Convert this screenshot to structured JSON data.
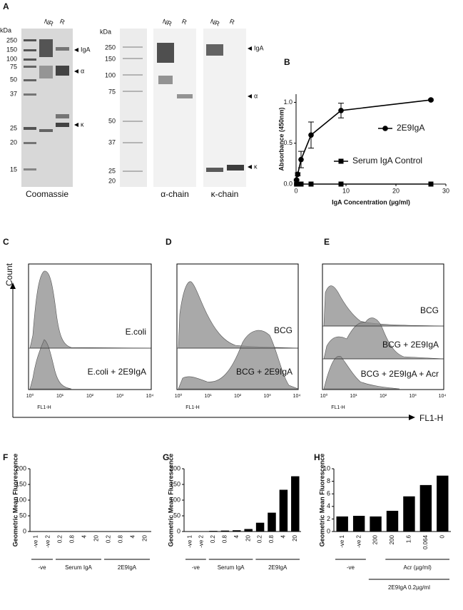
{
  "gels": {
    "panel": "A",
    "coomassie": {
      "kda_label": "kDa",
      "lanes": [
        "NR",
        "R"
      ],
      "markers": [
        "250",
        "150",
        "100",
        "75",
        "50",
        "37",
        "25",
        "20",
        "15"
      ],
      "arrows": [
        "IgA",
        "α",
        "κ"
      ],
      "caption": "Coomassie"
    },
    "western": {
      "kda_label": "kDa",
      "markers": [
        "250",
        "150",
        "100",
        "75",
        "50",
        "37",
        "25",
        "20"
      ],
      "blots": [
        {
          "lanes": [
            "NR",
            "R"
          ],
          "caption": "α-chain"
        },
        {
          "lanes": [
            "NR",
            "R"
          ],
          "caption": "κ-chain"
        }
      ],
      "arrows": [
        "IgA",
        "α",
        "κ"
      ]
    }
  },
  "flow": {
    "y_label": "Count",
    "x_label": "FL1-H",
    "panels": [
      {
        "panel": "C",
        "axis_label": "FL1-H",
        "xtick_labels": [
          "10⁰",
          "10¹",
          "10²",
          "10³",
          "10⁴"
        ],
        "samples": [
          "E.coli",
          "E.coli + 2E9IgA"
        ]
      },
      {
        "panel": "D",
        "axis_label": "FL1-H",
        "xtick_labels": [
          "10⁰",
          "10¹",
          "10²",
          "10³",
          "10⁴"
        ],
        "samples": [
          "BCG",
          "BCG + 2E9IgA"
        ]
      },
      {
        "panel": "E",
        "axis_label": "FL1-H",
        "xtick_labels": [
          "10⁰",
          "10¹",
          "10²",
          "10³",
          "10⁴"
        ],
        "samples": [
          "BCG",
          "BCG + 2E9IgA",
          "BCG + 2E9IgA + Acr"
        ]
      }
    ]
  },
  "chart_data": [
    {
      "type": "line",
      "panel": "B",
      "xlabel": "IgA Concentration (µg/ml)",
      "ylabel": "Absorbance (450nm)",
      "xlim": [
        0,
        30
      ],
      "xticks": [
        0,
        10,
        20,
        30
      ],
      "ylim": [
        0,
        1.1
      ],
      "yticks": [
        {
          "value": 0,
          "label": "0.0"
        },
        {
          "value": 0.5,
          "label": "0.5"
        },
        {
          "value": 1,
          "label": "1.0"
        }
      ],
      "series": [
        {
          "name": "2E9IgA",
          "color": "#000000",
          "marker": "circle",
          "x": [
            0.1,
            0.33,
            1,
            3,
            9,
            27
          ],
          "values": [
            0.05,
            0.12,
            0.3,
            0.6,
            0.9,
            1.03
          ],
          "errors": [
            0.01,
            0.02,
            0.1,
            0.16,
            0.09,
            0.01
          ]
        },
        {
          "name": "Serum IgA Control",
          "color": "#000000",
          "marker": "square",
          "x": [
            0.1,
            0.33,
            1,
            3,
            9,
            27
          ],
          "values": [
            0,
            0,
            0,
            0,
            0,
            0
          ]
        }
      ]
    },
    {
      "type": "bar",
      "panel": "F",
      "ylabel": "Geometric Mean Fluorescence",
      "color": "#000000",
      "categories": [
        "-ve 1",
        "-ve 2",
        "0.2",
        "0.8",
        "4",
        "20",
        "0.2",
        "0.8",
        "4",
        "20"
      ],
      "values": [
        1,
        1,
        1,
        1,
        1,
        1,
        1,
        1,
        1,
        1
      ],
      "ylim": [
        0,
        200
      ],
      "yticks": [
        0,
        50,
        100,
        150,
        200
      ],
      "group_labels": [
        "-ve",
        "Serum IgA",
        "2E9IgA"
      ]
    },
    {
      "type": "bar",
      "panel": "G",
      "ylabel": "Geometric Mean Fluorescence",
      "color": "#000000",
      "categories": [
        "-ve 1",
        "-ve 2",
        "0.2",
        "0.8",
        "4",
        "20",
        "0.2",
        "0.8",
        "4",
        "20"
      ],
      "values": [
        1,
        1,
        2,
        3,
        4,
        8,
        28,
        60,
        133,
        176
      ],
      "ylim": [
        0,
        200
      ],
      "yticks": [
        0,
        50,
        100,
        150,
        200
      ],
      "group_labels": [
        "-ve",
        "Serum IgA",
        "2E9IgA"
      ]
    },
    {
      "type": "bar",
      "panel": "H",
      "ylabel": "Geometric Mean Fluorescence",
      "color": "#000000",
      "categories": [
        "-ve 1",
        "-ve 2",
        "200",
        "200",
        "1.6",
        "0.064",
        "0"
      ],
      "values": [
        2.4,
        2.5,
        2.4,
        3.3,
        5.6,
        7.4,
        8.9
      ],
      "ylim": [
        0,
        10
      ],
      "yticks": [
        0,
        2,
        4,
        6,
        8,
        10
      ],
      "group_labels": [
        "-ve",
        "Acr (µg/ml)",
        "2E9IgA 0.2µg/ml"
      ]
    }
  ]
}
